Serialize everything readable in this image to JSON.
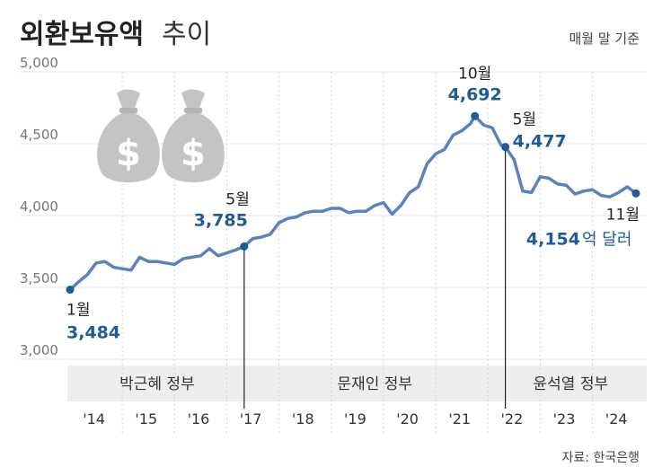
{
  "header": {
    "title": "외환보유액",
    "subtitle": "추이",
    "basis_note": "매월 말 기준"
  },
  "source_note": "자료: 한국은행",
  "colors": {
    "line": "#5b82c0",
    "value_text": "#1f5a99",
    "era_band": "#eeeeee",
    "grid": "#e4e4e4",
    "money_bag": "#c4c4c4"
  },
  "icons": [
    "money-bag-icon",
    "money-bag-icon"
  ],
  "chart_data": {
    "type": "line",
    "title": "외환보유액 추이",
    "ylabel": "",
    "xlabel": "",
    "ylim": [
      3000,
      5000
    ],
    "y_ticks": [
      "3,000",
      "3,500",
      "4,000",
      "4,500",
      "5,000"
    ],
    "x_ticks": [
      "'14",
      "'15",
      "'16",
      "'17",
      "'18",
      "'19",
      "'20",
      "'21",
      "'22",
      "'23",
      "'24"
    ],
    "x_range": [
      "2014-01",
      "2024-11"
    ],
    "grid": true,
    "eras": [
      {
        "label": "박근혜 정부",
        "start": "2014-01",
        "end": "2017-05"
      },
      {
        "label": "문재인 정부",
        "start": "2017-05",
        "end": "2022-05"
      },
      {
        "label": "윤석열 정부",
        "start": "2022-05",
        "end": "2024-11"
      }
    ],
    "annotations": [
      {
        "date_label": "1월",
        "value_label": "3,484",
        "x": "2014-01",
        "y": 3484
      },
      {
        "date_label": "5월",
        "value_label": "3,785",
        "x": "2017-05",
        "y": 3785
      },
      {
        "date_label": "10월",
        "value_label": "4,692",
        "x": "2021-10",
        "y": 4692
      },
      {
        "date_label": "5월",
        "value_label": "4,477",
        "x": "2022-05",
        "y": 4477
      },
      {
        "date_label": "11월",
        "value_label": "4,154",
        "unit": "억 달러",
        "x": "2024-11",
        "y": 4154
      }
    ],
    "series": [
      {
        "points": [
          [
            "2014-01",
            3484
          ],
          [
            "2014-03",
            3540
          ],
          [
            "2014-05",
            3590
          ],
          [
            "2014-07",
            3670
          ],
          [
            "2014-09",
            3680
          ],
          [
            "2014-11",
            3640
          ],
          [
            "2015-01",
            3630
          ],
          [
            "2015-03",
            3620
          ],
          [
            "2015-05",
            3710
          ],
          [
            "2015-07",
            3680
          ],
          [
            "2015-09",
            3680
          ],
          [
            "2015-11",
            3670
          ],
          [
            "2016-01",
            3660
          ],
          [
            "2016-03",
            3700
          ],
          [
            "2016-05",
            3710
          ],
          [
            "2016-07",
            3720
          ],
          [
            "2016-09",
            3770
          ],
          [
            "2016-11",
            3720
          ],
          [
            "2017-01",
            3740
          ],
          [
            "2017-03",
            3760
          ],
          [
            "2017-05",
            3785
          ],
          [
            "2017-07",
            3840
          ],
          [
            "2017-09",
            3850
          ],
          [
            "2017-11",
            3870
          ],
          [
            "2018-01",
            3950
          ],
          [
            "2018-03",
            3980
          ],
          [
            "2018-05",
            3990
          ],
          [
            "2018-07",
            4020
          ],
          [
            "2018-09",
            4030
          ],
          [
            "2018-11",
            4030
          ],
          [
            "2019-01",
            4050
          ],
          [
            "2019-03",
            4050
          ],
          [
            "2019-05",
            4020
          ],
          [
            "2019-07",
            4030
          ],
          [
            "2019-09",
            4030
          ],
          [
            "2019-11",
            4070
          ],
          [
            "2020-01",
            4090
          ],
          [
            "2020-03",
            4010
          ],
          [
            "2020-05",
            4070
          ],
          [
            "2020-07",
            4160
          ],
          [
            "2020-09",
            4200
          ],
          [
            "2020-11",
            4360
          ],
          [
            "2021-01",
            4430
          ],
          [
            "2021-03",
            4460
          ],
          [
            "2021-05",
            4560
          ],
          [
            "2021-07",
            4590
          ],
          [
            "2021-09",
            4640
          ],
          [
            "2021-10",
            4692
          ],
          [
            "2021-12",
            4630
          ],
          [
            "2022-02",
            4610
          ],
          [
            "2022-04",
            4490
          ],
          [
            "2022-05",
            4477
          ],
          [
            "2022-07",
            4390
          ],
          [
            "2022-09",
            4170
          ],
          [
            "2022-11",
            4160
          ],
          [
            "2023-01",
            4270
          ],
          [
            "2023-03",
            4260
          ],
          [
            "2023-05",
            4220
          ],
          [
            "2023-07",
            4210
          ],
          [
            "2023-09",
            4150
          ],
          [
            "2023-11",
            4170
          ],
          [
            "2024-01",
            4180
          ],
          [
            "2024-03",
            4140
          ],
          [
            "2024-05",
            4130
          ],
          [
            "2024-07",
            4160
          ],
          [
            "2024-09",
            4200
          ],
          [
            "2024-11",
            4154
          ]
        ]
      }
    ]
  }
}
